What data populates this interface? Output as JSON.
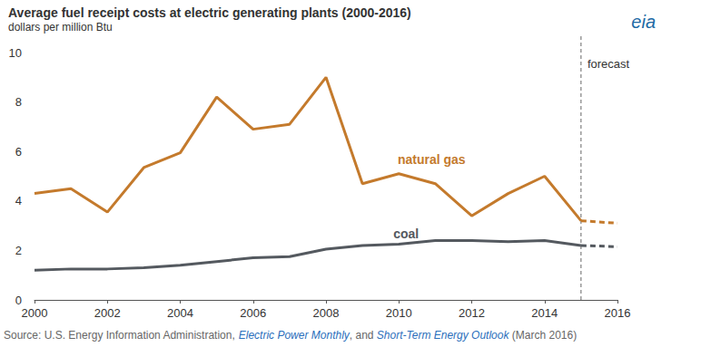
{
  "chart_data": {
    "type": "line",
    "title": "Average fuel receipt costs at electric generating plants (2000-2016)",
    "subtitle": "dollars per million Btu",
    "logo": "eia",
    "source": "Source: U.S. Energy Information Administration, Electric Power Monthly, and Short-Term Energy Outlook (March 2016)",
    "source_italic": [
      "Electric Power Monthly",
      "Short-Term Energy Outlook"
    ],
    "x": [
      2000,
      2001,
      2002,
      2003,
      2004,
      2005,
      2006,
      2007,
      2008,
      2009,
      2010,
      2011,
      2012,
      2013,
      2014,
      2015,
      2016
    ],
    "series": [
      {
        "name": "natural gas",
        "color": "#c47a2c",
        "values": [
          4.3,
          4.5,
          3.55,
          5.35,
          5.95,
          8.2,
          6.9,
          7.1,
          9.0,
          4.7,
          5.1,
          4.7,
          3.4,
          4.3,
          5.0,
          3.2,
          3.1
        ]
      },
      {
        "name": "coal",
        "color": "#54595f",
        "values": [
          1.2,
          1.25,
          1.25,
          1.3,
          1.4,
          1.55,
          1.7,
          1.75,
          2.05,
          2.2,
          2.25,
          2.4,
          2.4,
          2.35,
          2.4,
          2.2,
          2.15
        ]
      }
    ],
    "annotations": [
      {
        "text": "forecast",
        "x": 2015
      }
    ],
    "xlim": [
      2000,
      2016
    ],
    "xticks": [
      2000,
      2002,
      2004,
      2006,
      2008,
      2010,
      2012,
      2014,
      2016
    ],
    "ylim": [
      0,
      10
    ],
    "yticks": [
      0,
      2,
      4,
      6,
      8,
      10
    ],
    "grid": false
  }
}
